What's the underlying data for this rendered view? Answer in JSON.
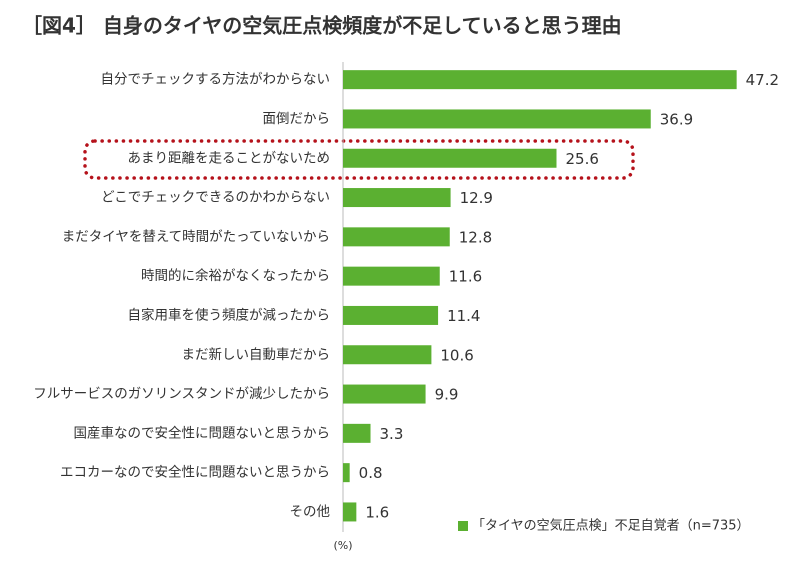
{
  "chart_data": {
    "type": "bar",
    "title": "［図4］ 自身のタイヤの空気圧点検頻度が不足していると思う理由",
    "categories": [
      "自分でチェックする方法がわからない",
      "面倒だから",
      "あまり距離を走ることがないため",
      "どこでチェックできるのかわからない",
      "まだタイヤを替えて時間がたっていないから",
      "時間的に余裕がなくなったから",
      "自家用車を使う頻度が減ったから",
      "まだ新しい自動車だから",
      "フルサービスのガソリンスタンドが減少したから",
      "国産車なので安全性に問題ないと思うから",
      "エコカーなので安全性に問題ないと思うから",
      "その他"
    ],
    "series": [
      {
        "name": "「タイヤの空気圧点検」不足自覚者（n=735）",
        "color": "#5bb031",
        "values": [
          47.2,
          36.9,
          25.6,
          12.9,
          12.8,
          11.6,
          11.4,
          10.6,
          9.9,
          3.3,
          0.8,
          1.6
        ]
      }
    ],
    "xlim": [
      0,
      50
    ],
    "x_label": "(%)"
  }
}
